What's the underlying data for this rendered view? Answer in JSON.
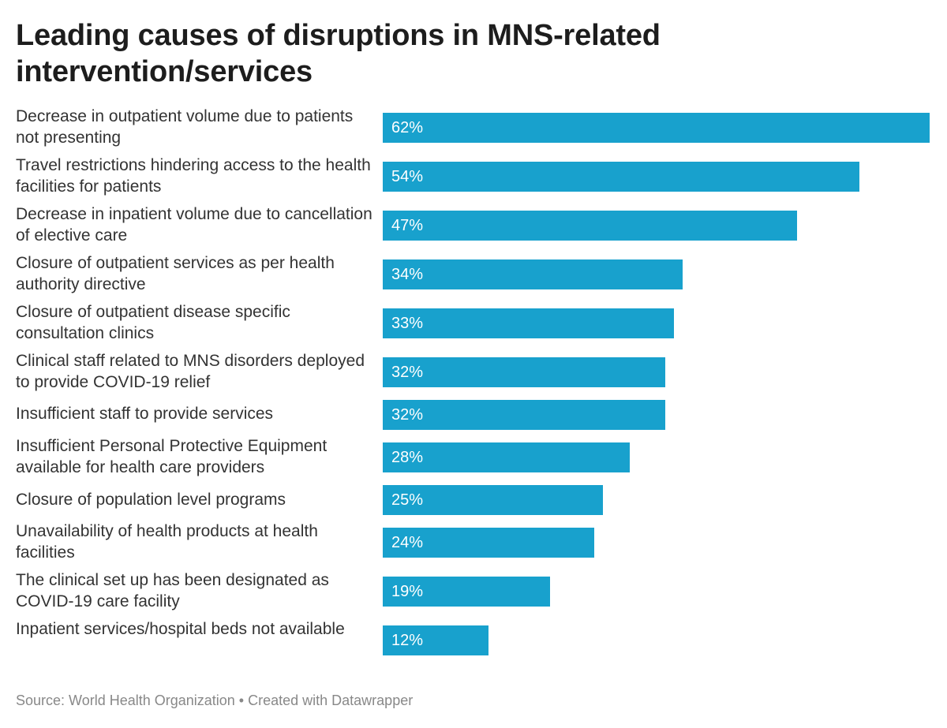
{
  "chart_data": {
    "type": "bar",
    "orientation": "horizontal",
    "title": "Leading causes of disruptions in MNS-related intervention/services",
    "categories": [
      "Decrease in outpatient volume due to patients not presenting",
      "Travel restrictions hindering access to the health facilities for patients",
      "Decrease in inpatient volume due to cancellation of elective care",
      "Closure of outpatient services as per health authority directive",
      "Closure of outpatient disease specific consultation clinics",
      "Clinical staff related to MNS disorders deployed to provide COVID-19 relief",
      "Insufficient staff to provide services",
      "Insufficient Personal Protective Equipment available for health care providers",
      "Closure of population level programs",
      "Unavailability of health products at health facilities",
      "The clinical set up has been designated as COVID-19 care facility",
      "Inpatient services/hospital beds not available"
    ],
    "values": [
      62,
      54,
      47,
      34,
      33,
      32,
      32,
      28,
      25,
      24,
      19,
      12
    ],
    "value_labels": [
      "62%",
      "54%",
      "47%",
      "34%",
      "33%",
      "32%",
      "32%",
      "28%",
      "25%",
      "24%",
      "19%",
      "12%"
    ],
    "xlim": [
      0,
      62
    ],
    "grid": false,
    "legend": "none",
    "bar_color": "#18a1cd",
    "value_label_color": "#ffffff"
  },
  "footer": {
    "source": "Source: World Health Organization • Created with Datawrapper"
  }
}
